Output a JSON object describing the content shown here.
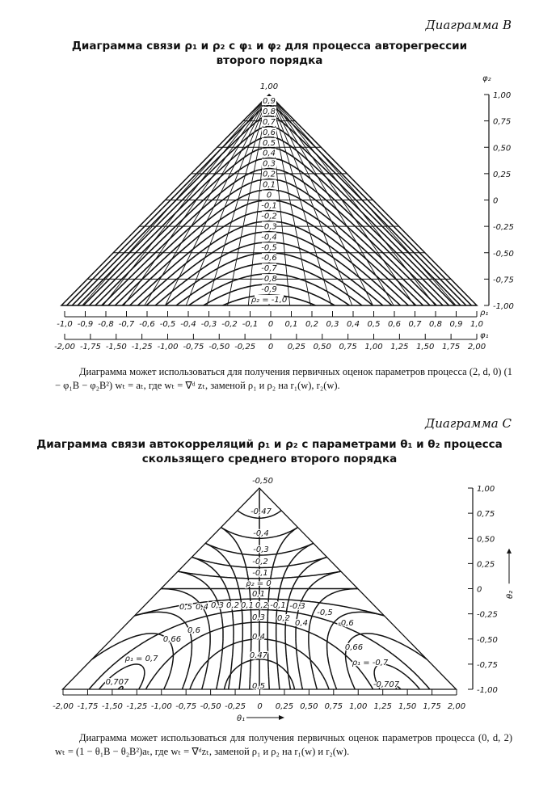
{
  "diagram_b": {
    "label": "Диаграмма B",
    "title_line1": "Диаграмма связи ρ₁ и ρ₂ с φ₁ и φ₂ для процесса авторегрессии",
    "title_line2": "второго порядка",
    "apex_label": "1,00",
    "rho2_labels": [
      "0,9",
      "0,8",
      "0,7",
      "0,6",
      "0,5",
      "0,4",
      "0,3",
      "0,2",
      "0,1",
      "0",
      "-0,1",
      "-0,2",
      "-0,3",
      "-0,4",
      "-0,5",
      "-0,6",
      "-0,7",
      "-0,8",
      "-0,9",
      "ρ₂ = -1,0"
    ],
    "rho1_axis": {
      "name": "ρ₁",
      "ticks": [
        "-1,0",
        "-0,9",
        "-0,8",
        "-0,7",
        "-0,6",
        "-0,5",
        "-0,4",
        "-0,3",
        "-0,2",
        "-0,1",
        "0",
        "0,1",
        "0,2",
        "0,3",
        "0,4",
        "0,5",
        "0,6",
        "0,7",
        "0,8",
        "0,9",
        "1,0"
      ]
    },
    "phi1_axis": {
      "name": "φ₁",
      "ticks": [
        "-2,00",
        "-1,75",
        "-1,50",
        "-1,25",
        "-1,00",
        "-0,75",
        "-0,50",
        "-0,25",
        "0",
        "0,25",
        "0,50",
        "0,75",
        "1,00",
        "1,25",
        "1,50",
        "1,75",
        "2,00"
      ]
    },
    "phi2_axis": {
      "name": "φ₂",
      "ticks": [
        "1,00",
        "0,75",
        "0,50",
        "0,25",
        "0",
        "-0,25",
        "-0,50",
        "-0,75",
        "-1,00"
      ]
    },
    "note": "Диаграмма может использоваться для получения первичных оценок параметров процесса (2, d, 0) (1 − φ₁B − φ₂B²) wₜ = aₜ, где wₜ = ∇ᵈ zₜ, заменой ρ₁ и ρ₂ на r₁(w), r₂(w)."
  },
  "diagram_c": {
    "label": "Диаграмма C",
    "title_line1": "Диаграмма связи автокорреляций ρ₁ и ρ₂ с параметрами θ₁ и θ₂ процесса",
    "title_line2": "скользящего среднего второго порядка",
    "contour_labels": [
      "-0,50",
      "-0,47",
      "-0,4",
      "-0,3",
      "-0,2",
      "-0,1",
      "ρ₂ = 0",
      "0,1",
      "0,5",
      "0,4",
      "0,3",
      "0,2",
      "0,1",
      "0,2",
      "-0,1",
      "-0,3",
      "-0,5",
      "-0,6",
      "0,3",
      "0,2",
      "0,4",
      "0,6",
      "0,66",
      "0,4",
      "0,47",
      "ρ₁ = 0,7",
      "0,707",
      "0,5",
      "0,66",
      "ρ₁ = -0,7",
      "-0,707"
    ],
    "theta1_axis": {
      "name": "θ₁",
      "ticks": [
        "-2,00",
        "-1,75",
        "-1,50",
        "-1,25",
        "-1,00",
        "-0,75",
        "-0,50",
        "-0,25",
        "0",
        "0,25",
        "0,50",
        "0,75",
        "1,00",
        "1,25",
        "1,50",
        "1,75",
        "2,00"
      ]
    },
    "theta2_axis": {
      "name": "θ₂",
      "ticks": [
        "1,00",
        "0,75",
        "0,50",
        "0,25",
        "0",
        "-0,25",
        "-0,50",
        "-0,75",
        "-1,00"
      ]
    },
    "note": "Диаграмма может использоваться для получения первичных оценок параметров процесса (0, d, 2) wₜ = (1 − θ₁B − θ₂B²)aₜ, где wₜ = ∇ᵈzₜ, заменой ρ₁ и ρ₂ на r₁(w) и r₂(w)."
  }
}
